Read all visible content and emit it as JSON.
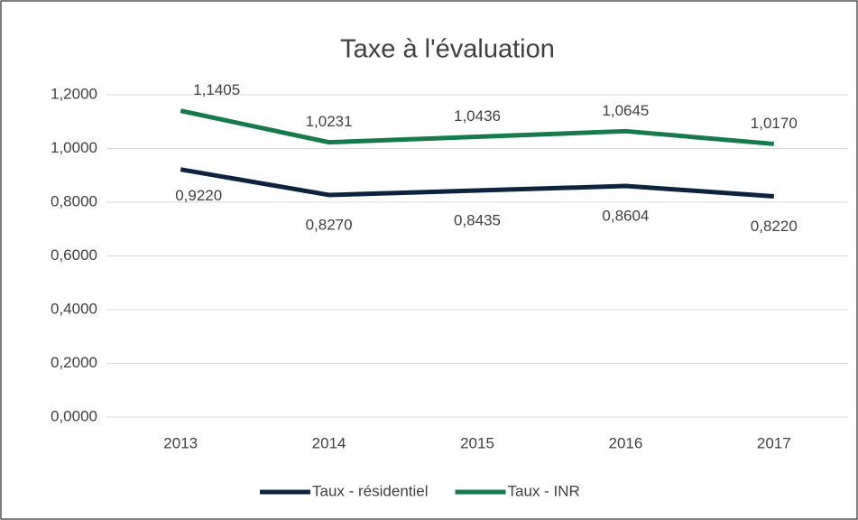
{
  "chart_data": {
    "type": "line",
    "title": "Taxe à l'évaluation",
    "categories": [
      "2013",
      "2014",
      "2015",
      "2016",
      "2017"
    ],
    "series": [
      {
        "name": "Taux - résidentiel",
        "color": "#0c2340",
        "values": [
          0.922,
          0.827,
          0.8435,
          0.8604,
          0.822
        ],
        "value_labels": [
          "0,9220",
          "0,8270",
          "0,8435",
          "0,8604",
          "0,8220"
        ]
      },
      {
        "name": "Taux - INR",
        "color": "#167a4b",
        "values": [
          1.1405,
          1.0231,
          1.0436,
          1.0645,
          1.017
        ],
        "value_labels": [
          "1,1405",
          "1,0231",
          "1,0436",
          "1,0645",
          "1,0170"
        ]
      }
    ],
    "ylim": [
      0,
      1.2
    ],
    "yticks": [
      {
        "value": 0,
        "label": "0,0000"
      },
      {
        "value": 0.2,
        "label": "0,2000"
      },
      {
        "value": 0.4,
        "label": "0,4000"
      },
      {
        "value": 0.6,
        "label": "0,6000"
      },
      {
        "value": 0.8,
        "label": "0,8000"
      },
      {
        "value": 1.0,
        "label": "1,0000"
      },
      {
        "value": 1.2,
        "label": "1,2000"
      }
    ],
    "grid": true,
    "legend": "bottom"
  }
}
